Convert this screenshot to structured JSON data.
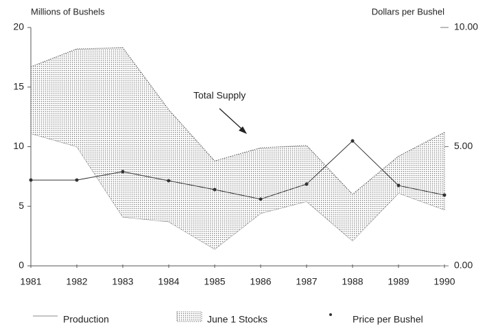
{
  "chart_data": {
    "type": "stacked-area-line",
    "y_label": "Millions of Bushels",
    "y2_label": "Dollars per Bushel",
    "annotation": "Total Supply",
    "categories": [
      "1981",
      "1982",
      "1983",
      "1984",
      "1985",
      "1986",
      "1987",
      "1988",
      "1989",
      "1990"
    ],
    "series": [
      {
        "name": "Production",
        "color": "#888888",
        "kind": "area",
        "values": [
          11.1,
          10.0,
          4.1,
          3.7,
          1.4,
          4.4,
          5.4,
          2.1,
          6.1,
          4.7
        ]
      },
      {
        "name": "June 1 Stocks",
        "color": "#9a9a9a",
        "kind": "area",
        "values": [
          5.6,
          8.2,
          14.2,
          9.4,
          7.4,
          5.5,
          4.7,
          3.9,
          3.1,
          6.5
        ]
      },
      {
        "name": "Price per Bushel",
        "color": "#333333",
        "kind": "line",
        "axis": "y2",
        "values": [
          3.6,
          3.6,
          3.95,
          3.57,
          3.2,
          2.8,
          3.43,
          5.24,
          3.37,
          2.97
        ]
      }
    ],
    "ylim": [
      0,
      20
    ],
    "yticks": [
      0,
      5,
      10,
      15,
      20
    ],
    "y2lim": [
      0,
      10
    ],
    "y2ticks": [
      {
        "value": 0,
        "label": "0.00"
      },
      {
        "value": 5,
        "label": "5.00"
      },
      {
        "value": 10,
        "label": "10.00"
      }
    ]
  }
}
